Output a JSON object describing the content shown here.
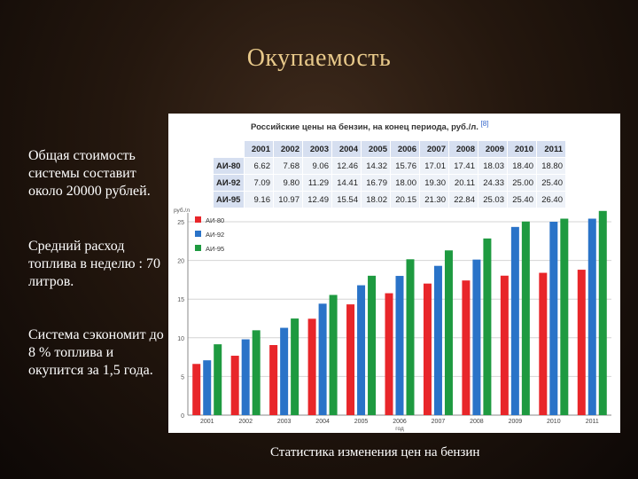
{
  "slide": {
    "title": "Окупаемость",
    "paragraphs": [
      "Общая стоимость системы составит около 20000 рублей.",
      "Средний расход топлива в неделю : 70 литров.",
      "Система сэкономит до 8 % топлива и окупится за 1,5 года."
    ],
    "caption": "Статистика изменения цен на бензин"
  },
  "table": {
    "title": "Российские цены на бензин, на конец периода, руб./л.",
    "ref": "[8]",
    "years": [
      "2001",
      "2002",
      "2003",
      "2004",
      "2005",
      "2006",
      "2007",
      "2008",
      "2009",
      "2010",
      "2011"
    ],
    "rows": [
      {
        "label": "АИ-80",
        "values": [
          "6.62",
          "7.68",
          "9.06",
          "12.46",
          "14.32",
          "15.76",
          "17.01",
          "17.41",
          "18.03",
          "18.40",
          "18.80"
        ]
      },
      {
        "label": "АИ-92",
        "values": [
          "7.09",
          "9.80",
          "11.29",
          "14.41",
          "16.79",
          "18.00",
          "19.30",
          "20.11",
          "24.33",
          "25.00",
          "25.40"
        ]
      },
      {
        "label": "АИ-95",
        "values": [
          "9.16",
          "10.97",
          "12.49",
          "15.54",
          "18.02",
          "20.15",
          "21.30",
          "22.84",
          "25.03",
          "25.40",
          "26.40"
        ]
      }
    ]
  },
  "chart_data": {
    "type": "bar",
    "ylabel": "руб./л",
    "xlabel": "год",
    "categories": [
      "2001",
      "2002",
      "2003",
      "2004",
      "2005",
      "2006",
      "2007",
      "2008",
      "2009",
      "2010",
      "2011"
    ],
    "ylim": [
      0,
      25
    ],
    "yticks": [
      "0",
      "5",
      "10",
      "15",
      "20",
      "25"
    ],
    "legend_position": "top-left",
    "series": [
      {
        "name": "АИ-80",
        "color": "#e8262a",
        "values": [
          6.62,
          7.68,
          9.06,
          12.46,
          14.32,
          15.76,
          17.01,
          17.41,
          18.03,
          18.4,
          18.8
        ]
      },
      {
        "name": "АИ-92",
        "color": "#2a73c8",
        "values": [
          7.09,
          9.8,
          11.29,
          14.41,
          16.79,
          18.0,
          19.3,
          20.11,
          24.33,
          25.0,
          25.4
        ]
      },
      {
        "name": "АИ-95",
        "color": "#1e9a40",
        "values": [
          9.16,
          10.97,
          12.49,
          15.54,
          18.02,
          20.15,
          21.3,
          22.84,
          25.03,
          25.4,
          26.4
        ]
      }
    ]
  }
}
